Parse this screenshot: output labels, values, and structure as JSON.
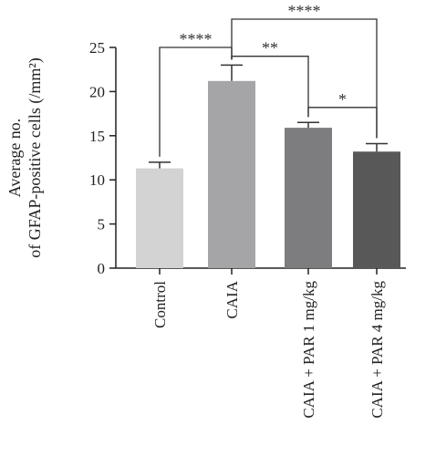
{
  "chart_data": {
    "type": "bar",
    "ylabel_lines": [
      "Average no.",
      "of GFAP-positive cells (/mm²)"
    ],
    "categories": [
      "Control",
      "CAIA",
      "CAIA + PAR 1 mg/kg",
      "CAIA + PAR 4 mg/kg"
    ],
    "values": [
      11.3,
      21.2,
      15.9,
      13.2
    ],
    "errors": [
      0.7,
      1.8,
      0.6,
      0.9
    ],
    "bar_colors": [
      "#d3d3d3",
      "#a5a5a7",
      "#7d7d7f",
      "#585858"
    ],
    "ylim": [
      0,
      25
    ],
    "yticks": [
      0,
      5,
      10,
      15,
      20,
      25
    ],
    "grid": false,
    "significance": [
      {
        "from": 0,
        "to": 1,
        "label": "****",
        "level": 25.0
      },
      {
        "from": 1,
        "to": 3,
        "label": "****",
        "level": 28.2
      },
      {
        "from": 1,
        "to": 2,
        "label": "**",
        "level": 24.0
      },
      {
        "from": 2,
        "to": 3,
        "label": "*",
        "level": 18.2
      }
    ]
  }
}
